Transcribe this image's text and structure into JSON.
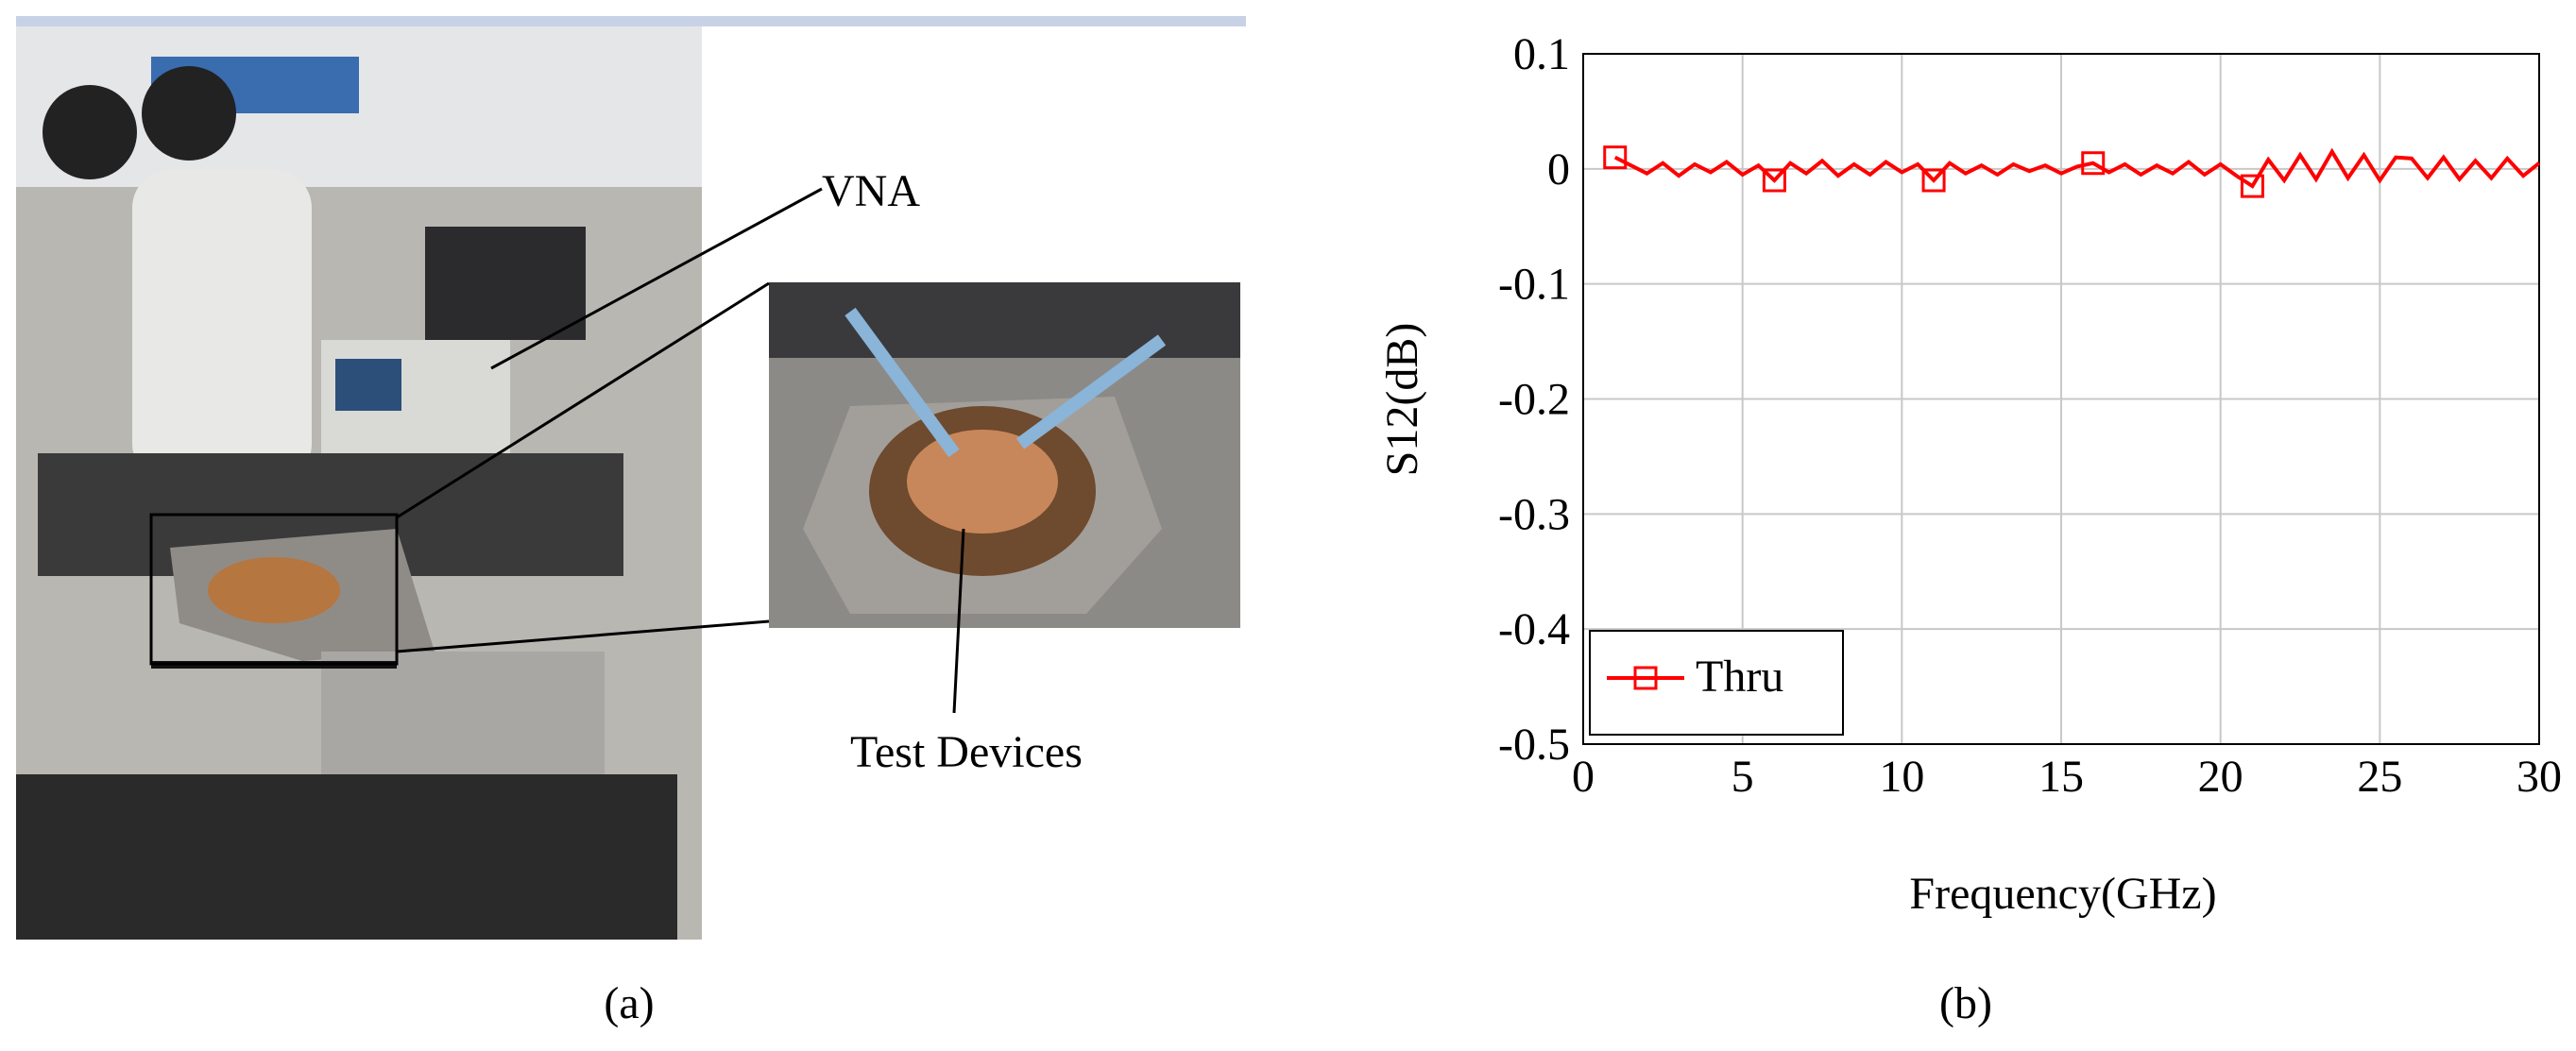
{
  "photo": {
    "annotations": [
      "VNA",
      "Test Devices"
    ],
    "caption": "(a)"
  },
  "chart_data": {
    "type": "line",
    "caption": "(b)",
    "x_label": "Frequency(GHz)",
    "y_label": "S12(dB)",
    "xlim": [
      0,
      30
    ],
    "xticks": [
      0,
      5,
      10,
      15,
      20,
      25,
      30
    ],
    "ylim": [
      -0.5,
      0.1
    ],
    "yticks": [
      -0.5,
      -0.4,
      -0.3,
      -0.2,
      -0.1,
      0,
      0.1
    ],
    "grid": true,
    "legend": "lower left",
    "x": [
      1,
      1.5,
      2,
      2.5,
      3,
      3.5,
      4,
      4.5,
      5,
      5.5,
      6,
      6.5,
      7,
      7.5,
      8,
      8.5,
      9,
      9.5,
      10,
      10.5,
      11,
      11.5,
      12,
      12.5,
      13,
      13.5,
      14,
      14.5,
      15,
      15.5,
      16,
      16.5,
      17,
      17.5,
      18,
      18.5,
      19,
      19.5,
      20,
      20.5,
      21,
      21.5,
      22,
      22.5,
      23,
      23.5,
      24,
      24.5,
      25,
      25.5,
      26,
      26.5,
      27,
      27.5,
      28,
      28.5,
      29,
      29.5,
      30
    ],
    "series": [
      {
        "name": "Thru",
        "color": "#ff0000",
        "marker": "square",
        "marker_indices": [
          0,
          10,
          20,
          30,
          40
        ],
        "values": [
          0.01,
          0.003,
          -0.004,
          0.005,
          -0.006,
          0.004,
          -0.003,
          0.006,
          -0.005,
          0.003,
          -0.01,
          0.005,
          -0.004,
          0.007,
          -0.006,
          0.004,
          -0.005,
          0.006,
          -0.003,
          0.004,
          -0.01,
          0.005,
          -0.004,
          0.003,
          -0.005,
          0.004,
          -0.002,
          0.003,
          -0.004,
          0.002,
          0.005,
          -0.003,
          0.004,
          -0.005,
          0.003,
          -0.004,
          0.006,
          -0.005,
          0.004,
          -0.006,
          -0.015,
          0.008,
          -0.01,
          0.012,
          -0.009,
          0.015,
          -0.008,
          0.012,
          -0.01,
          0.01,
          0.009,
          -0.008,
          0.01,
          -0.009,
          0.007,
          -0.008,
          0.009,
          -0.006,
          0.005
        ]
      }
    ]
  }
}
